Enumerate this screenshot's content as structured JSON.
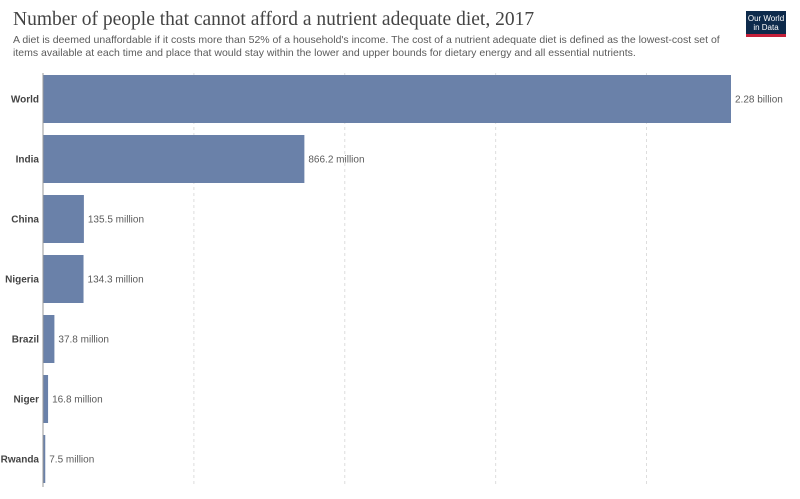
{
  "header": {
    "title": "Number of people that cannot afford a nutrient adequate diet, 2017",
    "subtitle": "A diet is deemed unaffordable if it costs more than 52% of a household's income. The cost of a nutrient adequate diet is defined as the lowest-cost set of items available at each time and place that would stay within the lower and upper bounds for dietary energy and all essential nutrients.",
    "logo_line1": "Our World",
    "logo_line2": "in Data"
  },
  "colors": {
    "bar": "#6a81a9",
    "logo_bg": "#0d2a4b",
    "logo_accent": "#c4203a"
  },
  "chart_data": {
    "type": "bar",
    "orientation": "horizontal",
    "title": "Number of people that cannot afford a nutrient adequate diet, 2017",
    "categories": [
      "World",
      "India",
      "China",
      "Nigeria",
      "Brazil",
      "Niger",
      "Rwanda"
    ],
    "values": [
      2280000000,
      866200000,
      135500000,
      134300000,
      37800000,
      16800000,
      7500000
    ],
    "value_labels": [
      "2.28 billion",
      "866.2 million",
      "135.5 million",
      "134.3 million",
      "37.8 million",
      "16.8 million",
      "7.5 million"
    ],
    "xlim": [
      0,
      2280000000
    ],
    "grid": true,
    "legend": "none"
  }
}
